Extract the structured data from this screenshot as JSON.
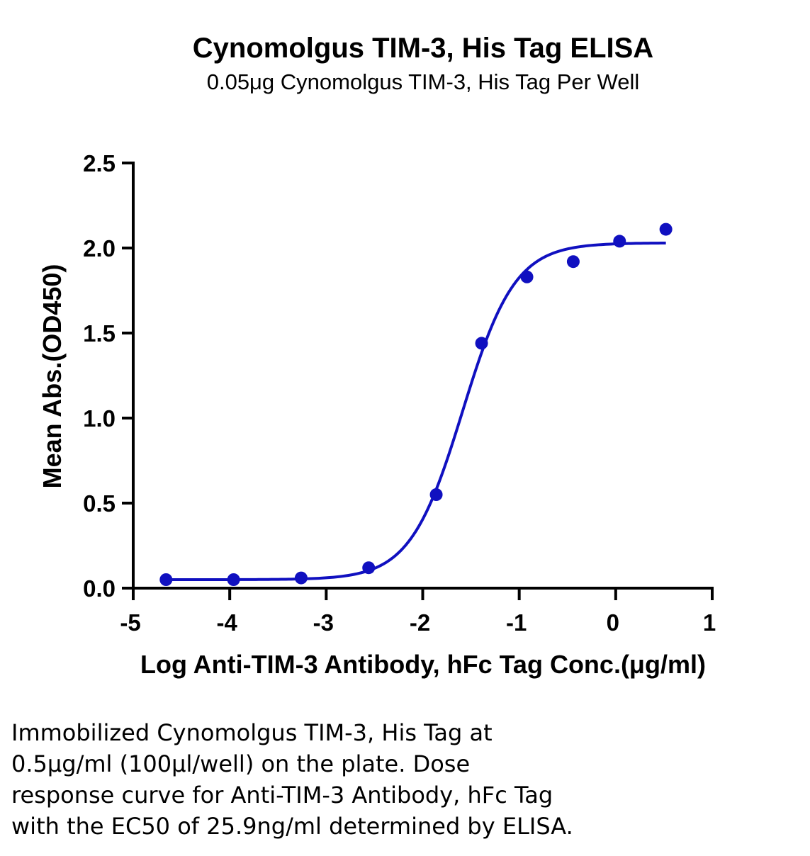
{
  "chart_data": {
    "type": "scatter",
    "title": "Cynomolgus TIM-3, His Tag ELISA",
    "subtitle": "0.05μg Cynomolgus TIM-3, His Tag Per Well",
    "xlabel": "Log Anti-TIM-3 Antibody, hFc Tag Conc.(μg/ml)",
    "ylabel": "Mean Abs.(OD450)",
    "xlim": [
      -5,
      1
    ],
    "ylim": [
      0,
      2.5
    ],
    "x_ticks": [
      "-5",
      "-4",
      "-3",
      "-2",
      "-1",
      "0",
      "1"
    ],
    "y_ticks": [
      "0.0",
      "0.5",
      "1.0",
      "1.5",
      "2.0",
      "2.5"
    ],
    "grid": false,
    "legend": "none",
    "color": "#1010c0",
    "series": [
      {
        "points": [
          {
            "x": -4.66,
            "y": 0.05
          },
          {
            "x": -3.96,
            "y": 0.05
          },
          {
            "x": -3.26,
            "y": 0.06
          },
          {
            "x": -2.56,
            "y": 0.12
          },
          {
            "x": -1.86,
            "y": 0.55
          },
          {
            "x": -1.39,
            "y": 1.44
          },
          {
            "x": -0.92,
            "y": 1.83
          },
          {
            "x": -0.44,
            "y": 1.92
          },
          {
            "x": 0.04,
            "y": 2.04
          },
          {
            "x": 0.52,
            "y": 2.11
          }
        ]
      }
    ],
    "fit": {
      "bottom": 0.05,
      "top": 2.03,
      "log_ec50": -1.587,
      "hill_slope": 1.6,
      "x_start": -4.66,
      "x_end": 0.52
    }
  },
  "caption": "Immobilized Cynomolgus TIM-3, His Tag at\n0.5μg/ml (100μl/well) on the plate. Dose\nresponse curve for Anti-TIM-3 Antibody, hFc Tag\nwith the EC50 of 25.9ng/ml determined by ELISA."
}
